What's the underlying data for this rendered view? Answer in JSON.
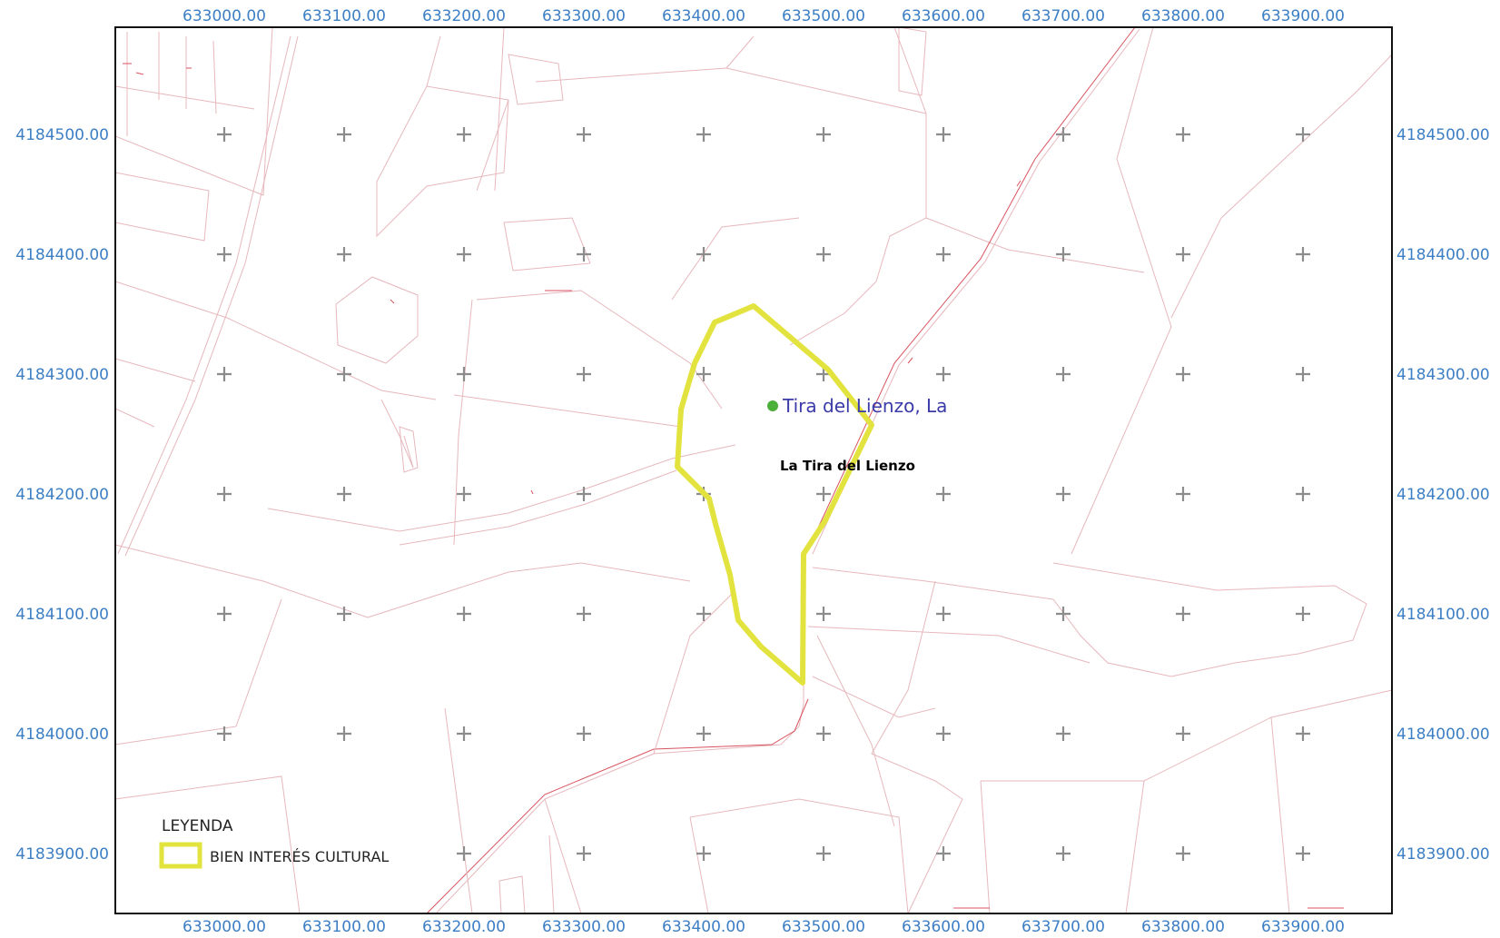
{
  "map": {
    "top_x_labels": [
      "633000.00",
      "633100.00",
      "633200.00",
      "633300.00",
      "633400.00",
      "633500.00",
      "633600.00",
      "633700.00",
      "633800.00",
      "633900.00"
    ],
    "bottom_x_labels": [
      "633000.00",
      "633100.00",
      "633200.00",
      "633300.00",
      "633400.00",
      "633500.00",
      "633600.00",
      "633700.00",
      "633800.00",
      "633900.00"
    ],
    "left_y_labels": [
      "4184500.00",
      "4184400.00",
      "4184300.00",
      "4184200.00",
      "4184100.00",
      "4184000.00",
      "4183900.00"
    ],
    "right_y_labels": [
      "4184500.00",
      "4184400.00",
      "4184300.00",
      "4184200.00",
      "4184100.00",
      "4184000.00",
      "4183900.00"
    ],
    "site_point_label": "Tira del Lienzo, La",
    "site_name_label": "La Tira del Lienzo",
    "colors": {
      "coord_text": "#3d7fc4",
      "boundary": "#e3e340",
      "site_point": "#4caf3a",
      "site_label": "#3a3aa8",
      "grid_cross": "#8c8c8c",
      "cadastral_lines": "#e7b7bc"
    },
    "icons": {
      "site_marker": "green-dot-icon",
      "grid_marker": "plus-icon"
    }
  },
  "legend": {
    "title": "LEYENDA",
    "items": [
      {
        "label": "BIEN INTERÉS CULTURAL",
        "swatch_color": "#e3e340"
      }
    ]
  }
}
